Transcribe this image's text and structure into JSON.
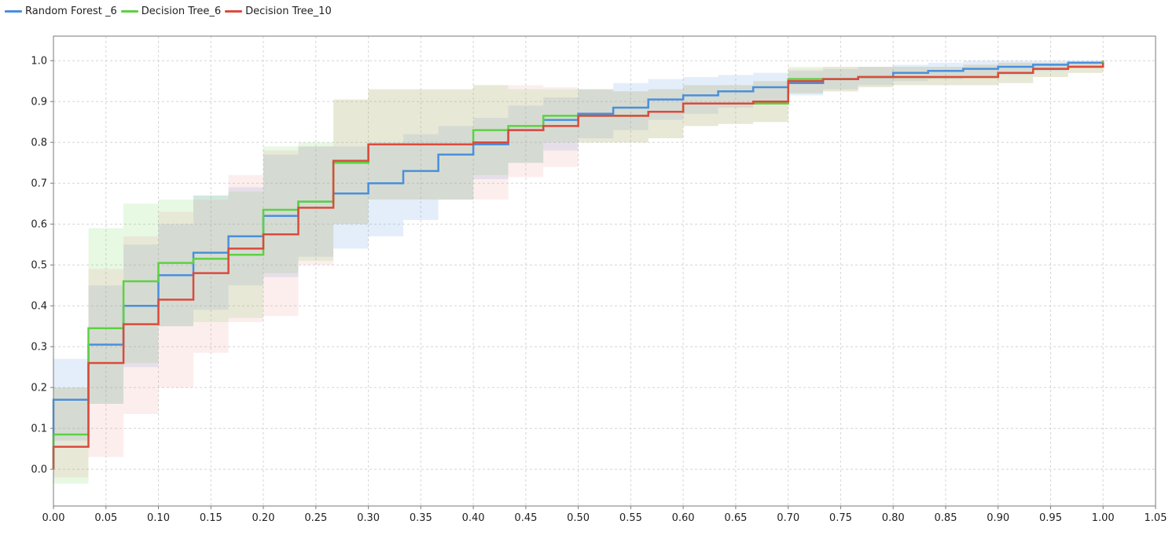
{
  "chart_data": {
    "type": "line",
    "title": "",
    "xlabel": "",
    "ylabel": "",
    "xlim": [
      0.0,
      1.05
    ],
    "ylim": [
      -0.09,
      1.06
    ],
    "grid": true,
    "legend_position": "top-left",
    "x_ticks": [
      "0.00",
      "0.05",
      "0.10",
      "0.15",
      "0.20",
      "0.25",
      "0.30",
      "0.35",
      "0.40",
      "0.45",
      "0.50",
      "0.55",
      "0.60",
      "0.65",
      "0.70",
      "0.75",
      "0.80",
      "0.85",
      "0.90",
      "0.95",
      "1.00",
      "1.05"
    ],
    "y_ticks": [
      "0.0",
      "0.1",
      "0.2",
      "0.3",
      "0.4",
      "0.5",
      "0.6",
      "0.7",
      "0.8",
      "0.9",
      "1.0"
    ],
    "series": [
      {
        "name": "Random Forest _6",
        "color": "#4a8fdc",
        "band_color": "#4a8fdc",
        "step_x": [
          0.0,
          0.0333,
          0.0667,
          0.1,
          0.1333,
          0.1667,
          0.2,
          0.2333,
          0.2667,
          0.3,
          0.3333,
          0.3667,
          0.4,
          0.4333,
          0.4667,
          0.5,
          0.5333,
          0.5667,
          0.6,
          0.6333,
          0.6667,
          0.7,
          0.7333,
          0.7667,
          0.8,
          0.8333,
          0.8667,
          0.9,
          0.9333,
          0.9667,
          1.0
        ],
        "step_y": [
          0.17,
          0.305,
          0.4,
          0.475,
          0.53,
          0.57,
          0.62,
          0.655,
          0.675,
          0.7,
          0.73,
          0.77,
          0.795,
          0.83,
          0.855,
          0.87,
          0.885,
          0.905,
          0.915,
          0.925,
          0.935,
          0.945,
          0.955,
          0.96,
          0.97,
          0.975,
          0.98,
          0.985,
          0.99,
          0.995,
          1.0
        ],
        "upper": [
          0.27,
          0.45,
          0.55,
          0.6,
          0.67,
          0.69,
          0.77,
          0.79,
          0.79,
          0.8,
          0.82,
          0.84,
          0.86,
          0.89,
          0.91,
          0.93,
          0.945,
          0.955,
          0.96,
          0.965,
          0.97,
          0.975,
          0.98,
          0.985,
          0.99,
          0.995,
          1.0,
          1.0,
          1.0,
          1.0,
          1.0
        ],
        "lower": [
          0.07,
          0.16,
          0.25,
          0.35,
          0.39,
          0.45,
          0.47,
          0.52,
          0.54,
          0.57,
          0.61,
          0.66,
          0.71,
          0.75,
          0.78,
          0.81,
          0.83,
          0.855,
          0.87,
          0.885,
          0.9,
          0.915,
          0.93,
          0.94,
          0.95,
          0.955,
          0.96,
          0.965,
          0.975,
          0.985,
          0.995
        ]
      },
      {
        "name": "Decision Tree_6",
        "color": "#5ed142",
        "band_color": "#5ed142",
        "step_x": [
          0.0,
          0.0333,
          0.0667,
          0.1,
          0.1333,
          0.1667,
          0.2,
          0.2333,
          0.2667,
          0.3,
          0.3333,
          0.3667,
          0.4,
          0.4333,
          0.4667,
          0.5,
          0.5333,
          0.5667,
          0.6,
          0.6333,
          0.6667,
          0.7,
          0.7333,
          0.7667,
          0.8,
          0.8333,
          0.8667,
          0.9,
          0.9333,
          0.9667,
          1.0
        ],
        "step_y": [
          0.085,
          0.345,
          0.46,
          0.505,
          0.515,
          0.525,
          0.635,
          0.655,
          0.75,
          0.795,
          0.795,
          0.795,
          0.83,
          0.84,
          0.865,
          0.865,
          0.865,
          0.875,
          0.895,
          0.895,
          0.895,
          0.955,
          0.955,
          0.96,
          0.96,
          0.96,
          0.96,
          0.97,
          0.98,
          0.985,
          1.0
        ],
        "upper": [
          0.2,
          0.59,
          0.65,
          0.66,
          0.67,
          0.68,
          0.79,
          0.8,
          0.905,
          0.93,
          0.93,
          0.93,
          0.94,
          0.93,
          0.93,
          0.93,
          0.925,
          0.93,
          0.94,
          0.94,
          0.95,
          0.985,
          0.985,
          0.985,
          0.985,
          0.985,
          0.99,
          0.995,
          0.995,
          0.995,
          1.0
        ],
        "lower": [
          -0.035,
          0.16,
          0.26,
          0.35,
          0.36,
          0.37,
          0.48,
          0.51,
          0.6,
          0.66,
          0.66,
          0.66,
          0.72,
          0.75,
          0.8,
          0.8,
          0.8,
          0.81,
          0.84,
          0.845,
          0.85,
          0.92,
          0.925,
          0.935,
          0.94,
          0.94,
          0.94,
          0.945,
          0.96,
          0.97,
          0.99
        ]
      },
      {
        "name": "Decision Tree_10",
        "color": "#dc4a3c",
        "band_color": "#f08a8a",
        "step_x": [
          0.0,
          0.0333,
          0.0667,
          0.1,
          0.1333,
          0.1667,
          0.2,
          0.2333,
          0.2667,
          0.3,
          0.3333,
          0.3667,
          0.4,
          0.4333,
          0.4667,
          0.5,
          0.5333,
          0.5667,
          0.6,
          0.6333,
          0.6667,
          0.7,
          0.7333,
          0.7667,
          0.8,
          0.8333,
          0.8667,
          0.9,
          0.9333,
          0.9667,
          1.0
        ],
        "step_y": [
          0.055,
          0.26,
          0.355,
          0.415,
          0.48,
          0.54,
          0.575,
          0.64,
          0.755,
          0.795,
          0.795,
          0.795,
          0.8,
          0.83,
          0.84,
          0.865,
          0.865,
          0.875,
          0.895,
          0.895,
          0.9,
          0.95,
          0.955,
          0.96,
          0.96,
          0.96,
          0.96,
          0.97,
          0.98,
          0.985,
          0.995
        ],
        "upper": [
          0.2,
          0.49,
          0.57,
          0.63,
          0.66,
          0.72,
          0.78,
          0.79,
          0.905,
          0.93,
          0.93,
          0.93,
          0.94,
          0.94,
          0.935,
          0.93,
          0.925,
          0.93,
          0.94,
          0.94,
          0.95,
          0.98,
          0.985,
          0.985,
          0.985,
          0.985,
          0.99,
          0.995,
          0.995,
          0.995,
          1.0
        ],
        "lower": [
          -0.02,
          0.03,
          0.135,
          0.2,
          0.285,
          0.36,
          0.375,
          0.5,
          0.6,
          0.66,
          0.66,
          0.66,
          0.66,
          0.715,
          0.74,
          0.8,
          0.8,
          0.81,
          0.84,
          0.845,
          0.85,
          0.92,
          0.925,
          0.935,
          0.94,
          0.94,
          0.94,
          0.945,
          0.96,
          0.97,
          0.99
        ]
      }
    ]
  }
}
